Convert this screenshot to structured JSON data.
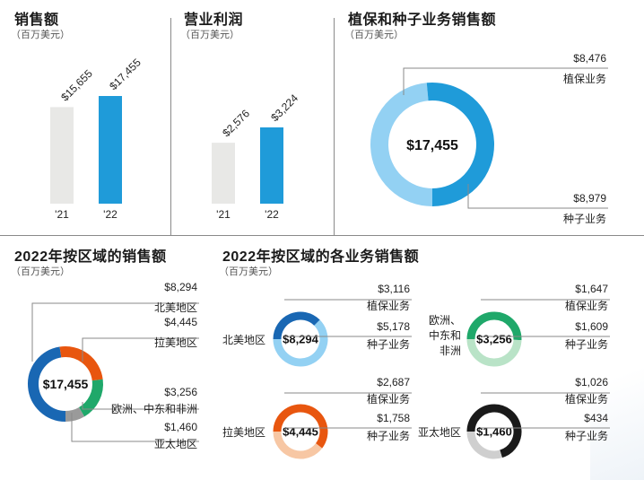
{
  "titles": {
    "sales": "销售额",
    "profit": "营业利润",
    "cp_seeds": "植保和种子业务销售额",
    "region_sales": "2022年按区域的销售额",
    "region_business": "2022年按区域的各业务销售额"
  },
  "unit": "（百万美元）",
  "chart_data": [
    {
      "type": "bar",
      "title": "销售额",
      "subtitle": "（百万美元）",
      "categories": [
        "'21",
        "'22"
      ],
      "values": [
        15655,
        17455
      ],
      "data_labels": [
        "$15,655",
        "$17,455"
      ],
      "colors": [
        "#e8e8e6",
        "#1f9bd9"
      ]
    },
    {
      "type": "bar",
      "title": "营业利润",
      "subtitle": "（百万美元）",
      "categories": [
        "'21",
        "'22"
      ],
      "values": [
        2576,
        3224
      ],
      "data_labels": [
        "$2,576",
        "$3,224"
      ],
      "colors": [
        "#e8e8e6",
        "#1f9bd9"
      ]
    },
    {
      "type": "pie",
      "title": "植保和种子业务销售额",
      "subtitle": "（百万美元）",
      "center_label": "$17,455",
      "slices": [
        {
          "label": "植保业务",
          "value": 8476,
          "value_label": "$8,476",
          "color": "#93d1f3"
        },
        {
          "label": "种子业务",
          "value": 8979,
          "value_label": "$8,979",
          "color": "#1f9bd9"
        }
      ]
    },
    {
      "type": "pie",
      "title": "2022年按区域的销售额",
      "subtitle": "（百万美元）",
      "center_label": "$17,455",
      "slices": [
        {
          "label": "北美地区",
          "value": 8294,
          "value_label": "$8,294",
          "color": "#1967b3"
        },
        {
          "label": "拉美地区",
          "value": 4445,
          "value_label": "$4,445",
          "color": "#e8560f"
        },
        {
          "label": "欧洲、中东和非洲",
          "value": 3256,
          "value_label": "$3,256",
          "color": "#1fa86a"
        },
        {
          "label": "亚太地区",
          "value": 1460,
          "value_label": "$1,460",
          "color": "#9a9a9a"
        }
      ]
    },
    {
      "type": "pie",
      "title": "2022年按区域的各业务销售额",
      "subtitle": "（百万美元）",
      "region": "北美地区",
      "center_label": "$8,294",
      "slices": [
        {
          "label": "植保业务",
          "value": 3116,
          "value_label": "$3,116",
          "color": "#1967b3"
        },
        {
          "label": "种子业务",
          "value": 5178,
          "value_label": "$5,178",
          "color": "#93d1f3"
        }
      ]
    },
    {
      "type": "pie",
      "region": "欧洲、中东和非洲",
      "center_label": "$3,256",
      "slices": [
        {
          "label": "植保业务",
          "value": 1647,
          "value_label": "$1,647",
          "color": "#1fa86a"
        },
        {
          "label": "种子业务",
          "value": 1609,
          "value_label": "$1,609",
          "color": "#b9e3c7"
        }
      ]
    },
    {
      "type": "pie",
      "region": "拉美地区",
      "center_label": "$4,445",
      "slices": [
        {
          "label": "植保业务",
          "value": 2687,
          "value_label": "$2,687",
          "color": "#e8560f"
        },
        {
          "label": "种子业务",
          "value": 1758,
          "value_label": "$1,758",
          "color": "#f7c7a4"
        }
      ]
    },
    {
      "type": "pie",
      "region": "亚太地区",
      "center_label": "$1,460",
      "slices": [
        {
          "label": "植保业务",
          "value": 1026,
          "value_label": "$1,026",
          "color": "#1a1a1a"
        },
        {
          "label": "种子业务",
          "value": 434,
          "value_label": "$434",
          "color": "#cfcfcf"
        }
      ]
    }
  ]
}
